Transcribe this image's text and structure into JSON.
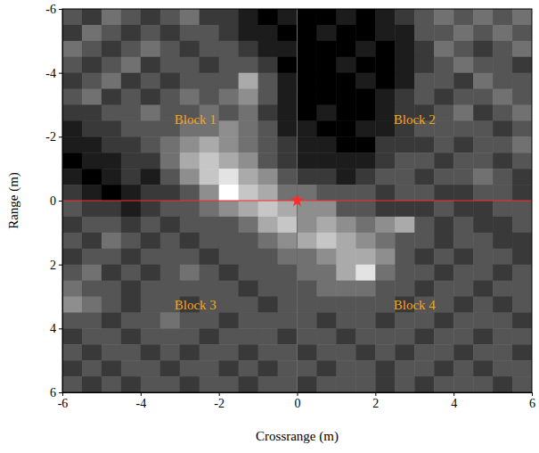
{
  "chart_data": {
    "type": "heatmap",
    "xlabel": "Crossrange (m)",
    "ylabel": "Range (m)",
    "xlim": [
      -6,
      6
    ],
    "ylim": [
      -6,
      6
    ],
    "xticks": [
      -6,
      -4,
      -2,
      0,
      2,
      4,
      6
    ],
    "yticks": [
      -6,
      -4,
      -2,
      0,
      2,
      4,
      6
    ],
    "zlim": [
      0,
      9
    ],
    "x": [
      -5.75,
      -5.25,
      -4.75,
      -4.25,
      -3.75,
      -3.25,
      -2.75,
      -2.25,
      -1.75,
      -1.25,
      -0.75,
      -0.25,
      0.25,
      0.75,
      1.25,
      1.75,
      2.25,
      2.75,
      3.25,
      3.75,
      4.25,
      4.75,
      5.25,
      5.75
    ],
    "y": [
      -5.75,
      -5.25,
      -4.75,
      -4.25,
      -3.75,
      -3.25,
      -2.75,
      -2.25,
      -1.75,
      -1.25,
      -0.75,
      -0.25,
      0.25,
      0.75,
      1.25,
      1.75,
      2.25,
      2.75,
      3.25,
      3.75,
      4.25,
      4.75,
      5.25,
      5.75
    ],
    "cells": [
      [
        3,
        2,
        4,
        3,
        2,
        3,
        4,
        2,
        2,
        1,
        0,
        1,
        0,
        0,
        1,
        0,
        1,
        2,
        3,
        4,
        3,
        4,
        3,
        4
      ],
      [
        2,
        4,
        3,
        2,
        3,
        2,
        3,
        3,
        2,
        1,
        1,
        0,
        0,
        1,
        0,
        0,
        1,
        1,
        3,
        3,
        4,
        3,
        4,
        3
      ],
      [
        4,
        3,
        2,
        3,
        4,
        3,
        2,
        3,
        3,
        2,
        1,
        1,
        0,
        0,
        0,
        1,
        0,
        1,
        2,
        4,
        3,
        2,
        3,
        4
      ],
      [
        3,
        2,
        3,
        4,
        2,
        3,
        3,
        2,
        3,
        3,
        2,
        0,
        0,
        0,
        1,
        0,
        0,
        1,
        2,
        3,
        4,
        3,
        3,
        2
      ],
      [
        2,
        3,
        4,
        2,
        3,
        2,
        3,
        3,
        3,
        6,
        3,
        1,
        0,
        0,
        0,
        1,
        0,
        1,
        3,
        3,
        2,
        4,
        3,
        3
      ],
      [
        3,
        4,
        2,
        3,
        2,
        3,
        4,
        3,
        4,
        5,
        3,
        1,
        0,
        0,
        0,
        0,
        1,
        2,
        3,
        2,
        3,
        3,
        4,
        3
      ],
      [
        2,
        2,
        3,
        3,
        4,
        3,
        3,
        4,
        3,
        4,
        2,
        1,
        0,
        1,
        0,
        0,
        1,
        2,
        2,
        3,
        4,
        2,
        3,
        4
      ],
      [
        1,
        2,
        2,
        3,
        3,
        3,
        4,
        4,
        5,
        4,
        3,
        1,
        1,
        0,
        0,
        1,
        1,
        2,
        3,
        3,
        3,
        3,
        2,
        3
      ],
      [
        1,
        1,
        2,
        2,
        3,
        4,
        5,
        6,
        5,
        4,
        3,
        2,
        1,
        1,
        0,
        0,
        2,
        2,
        2,
        3,
        2,
        3,
        3,
        4
      ],
      [
        0,
        1,
        1,
        2,
        2,
        4,
        6,
        7,
        6,
        5,
        3,
        2,
        1,
        1,
        1,
        1,
        2,
        3,
        3,
        2,
        3,
        3,
        2,
        3
      ],
      [
        1,
        0,
        1,
        2,
        1,
        3,
        5,
        7,
        8,
        6,
        5,
        3,
        2,
        2,
        1,
        2,
        3,
        3,
        2,
        3,
        3,
        4,
        3,
        2
      ],
      [
        2,
        1,
        0,
        1,
        2,
        2,
        3,
        5,
        9,
        7,
        6,
        4,
        4,
        3,
        3,
        3,
        2,
        3,
        3,
        2,
        2,
        3,
        3,
        2
      ],
      [
        3,
        2,
        2,
        1,
        2,
        3,
        3,
        4,
        5,
        6,
        7,
        6,
        5,
        5,
        3,
        3,
        2,
        2,
        2,
        3,
        2,
        2,
        3,
        3
      ],
      [
        2,
        3,
        3,
        2,
        3,
        2,
        3,
        3,
        3,
        4,
        6,
        7,
        5,
        6,
        5,
        4,
        5,
        6,
        3,
        2,
        3,
        2,
        2,
        3
      ],
      [
        3,
        2,
        4,
        3,
        2,
        3,
        2,
        3,
        3,
        3,
        4,
        5,
        6,
        7,
        6,
        5,
        4,
        3,
        3,
        2,
        3,
        3,
        2,
        2
      ],
      [
        2,
        3,
        3,
        2,
        3,
        3,
        3,
        2,
        3,
        3,
        3,
        4,
        4,
        5,
        6,
        6,
        5,
        3,
        2,
        3,
        2,
        3,
        3,
        2
      ],
      [
        3,
        4,
        2,
        3,
        2,
        3,
        4,
        3,
        2,
        3,
        3,
        3,
        4,
        4,
        6,
        8,
        4,
        3,
        3,
        2,
        3,
        3,
        2,
        3
      ],
      [
        4,
        3,
        3,
        2,
        3,
        3,
        3,
        3,
        3,
        2,
        3,
        3,
        3,
        4,
        4,
        4,
        3,
        3,
        2,
        3,
        3,
        2,
        3,
        3
      ],
      [
        5,
        4,
        3,
        2,
        3,
        3,
        2,
        3,
        3,
        3,
        2,
        3,
        3,
        3,
        3,
        3,
        3,
        2,
        3,
        3,
        2,
        3,
        2,
        3
      ],
      [
        3,
        3,
        2,
        3,
        3,
        4,
        3,
        3,
        2,
        3,
        3,
        3,
        3,
        2,
        3,
        3,
        2,
        3,
        3,
        2,
        3,
        3,
        3,
        2
      ],
      [
        2,
        3,
        3,
        2,
        3,
        3,
        3,
        2,
        3,
        3,
        3,
        2,
        3,
        3,
        2,
        3,
        3,
        3,
        2,
        3,
        3,
        2,
        3,
        3
      ],
      [
        3,
        2,
        3,
        3,
        2,
        3,
        2,
        3,
        3,
        2,
        3,
        3,
        2,
        3,
        3,
        2,
        3,
        2,
        3,
        3,
        2,
        3,
        3,
        2
      ],
      [
        2,
        3,
        2,
        3,
        3,
        2,
        3,
        3,
        2,
        3,
        2,
        3,
        3,
        2,
        3,
        3,
        2,
        3,
        3,
        2,
        3,
        2,
        3,
        3
      ],
      [
        3,
        2,
        3,
        2,
        3,
        3,
        2,
        3,
        3,
        2,
        3,
        3,
        2,
        3,
        3,
        3,
        2,
        3,
        2,
        3,
        3,
        3,
        2,
        3
      ]
    ],
    "crosshair": {
      "x": 0,
      "y": 0,
      "color": "#ff2a2a",
      "marker": "star"
    },
    "annotations": [
      {
        "text": "Block 1",
        "x": -2.6,
        "y": -2.5
      },
      {
        "text": "Block 2",
        "x": 3.0,
        "y": -2.5
      },
      {
        "text": "Block 3",
        "x": -2.6,
        "y": 3.3
      },
      {
        "text": "Block 4",
        "x": 3.0,
        "y": 3.3
      }
    ]
  }
}
